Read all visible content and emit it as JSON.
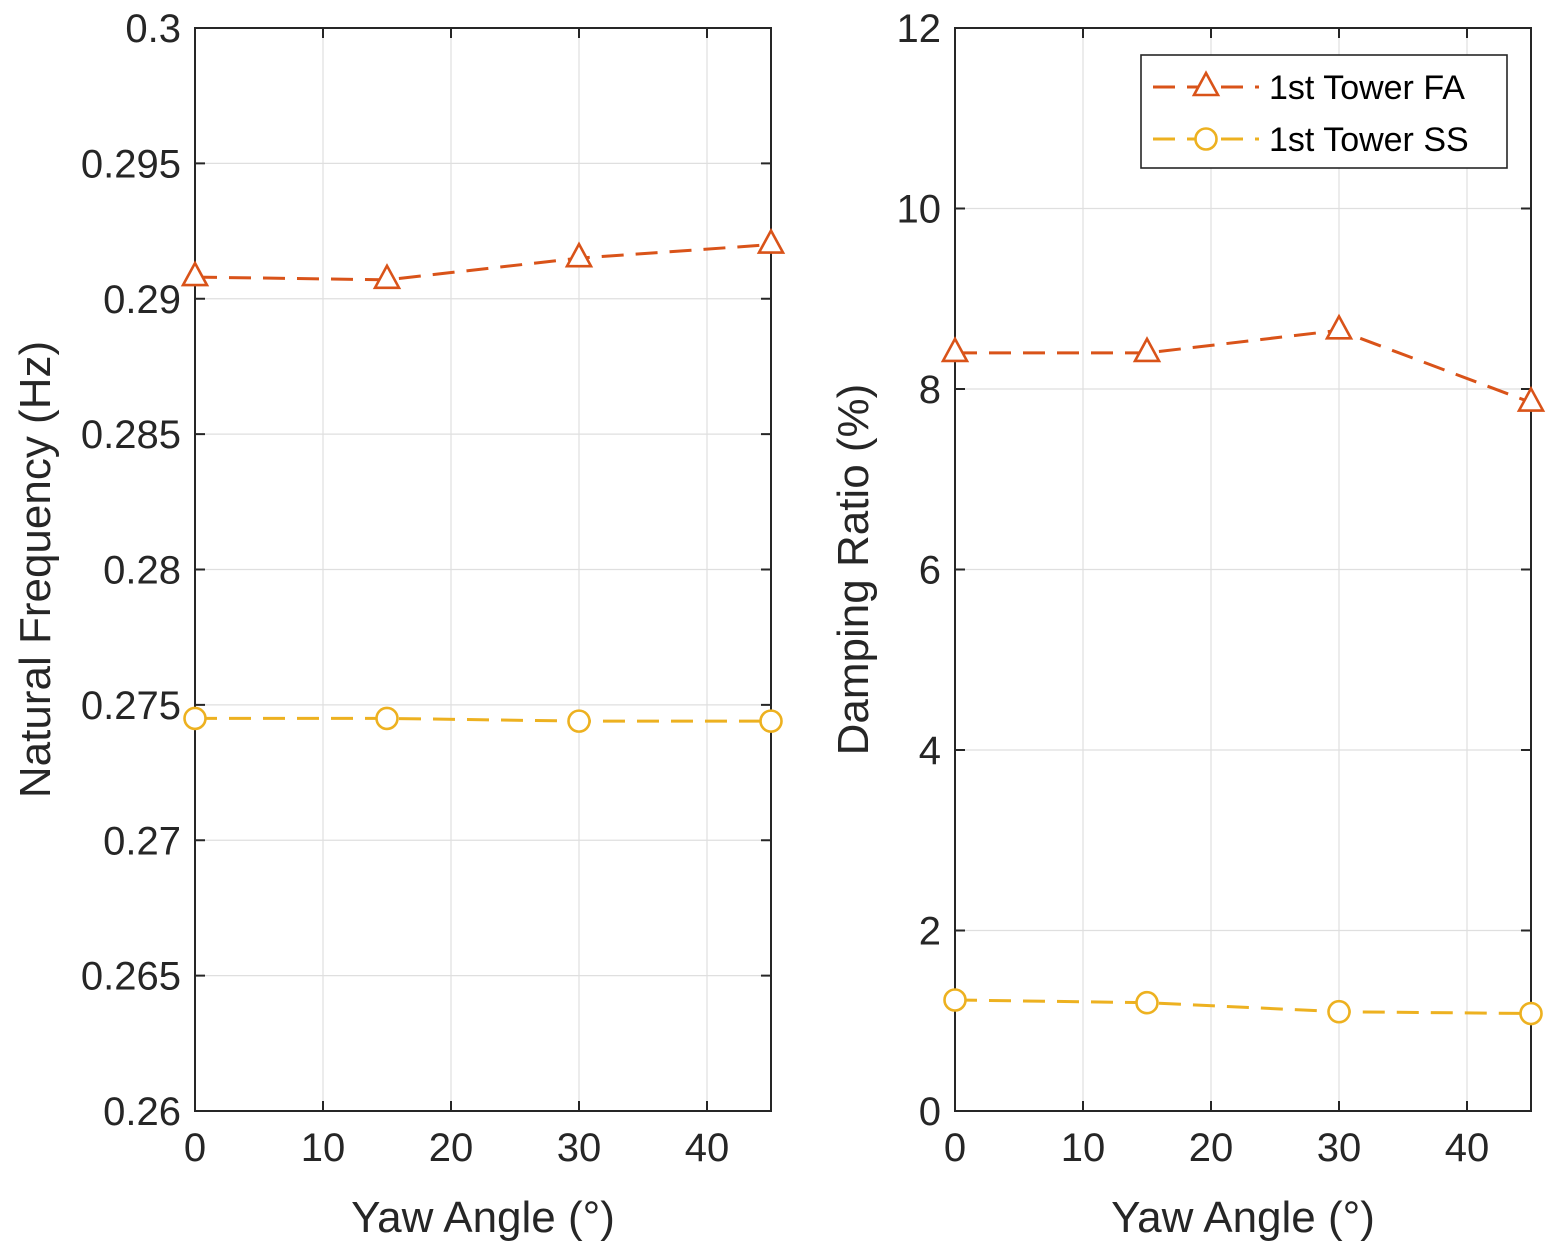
{
  "chart_data": [
    {
      "type": "line",
      "xlabel": "Yaw Angle (°)",
      "ylabel": "Natural Frequency (Hz)",
      "xlim": [
        0,
        45
      ],
      "ylim": [
        0.26,
        0.3
      ],
      "xticks": [
        "0",
        "10",
        "20",
        "30",
        "40"
      ],
      "yticks": [
        "0.26",
        "0.265",
        "0.27",
        "0.275",
        "0.28",
        "0.285",
        "0.29",
        "0.295",
        "0.3"
      ],
      "grid": true,
      "x": [
        0,
        15,
        30,
        45
      ],
      "series": [
        {
          "name": "1st Tower FA",
          "color": "#D95319",
          "marker": "triangle",
          "line": "dashed",
          "values": [
            0.2908,
            0.2907,
            0.2915,
            0.292
          ]
        },
        {
          "name": "1st Tower SS",
          "color": "#EDB120",
          "marker": "circle",
          "line": "dashed",
          "values": [
            0.2745,
            0.2745,
            0.2744,
            0.2744
          ]
        }
      ]
    },
    {
      "type": "line",
      "xlabel": "Yaw Angle (°)",
      "ylabel": "Damping Ratio (%)",
      "xlim": [
        0,
        45
      ],
      "ylim": [
        0,
        12
      ],
      "xticks": [
        "0",
        "10",
        "20",
        "30",
        "40"
      ],
      "yticks": [
        "0",
        "2",
        "4",
        "6",
        "8",
        "10",
        "12"
      ],
      "grid": true,
      "legend": "top-right",
      "x": [
        0,
        15,
        30,
        45
      ],
      "series": [
        {
          "name": "1st Tower FA",
          "color": "#D95319",
          "marker": "triangle",
          "line": "dashed",
          "values": [
            8.4,
            8.4,
            8.65,
            7.85
          ]
        },
        {
          "name": "1st Tower SS",
          "color": "#EDB120",
          "marker": "circle",
          "line": "dashed",
          "values": [
            1.23,
            1.2,
            1.1,
            1.08
          ]
        }
      ]
    }
  ]
}
